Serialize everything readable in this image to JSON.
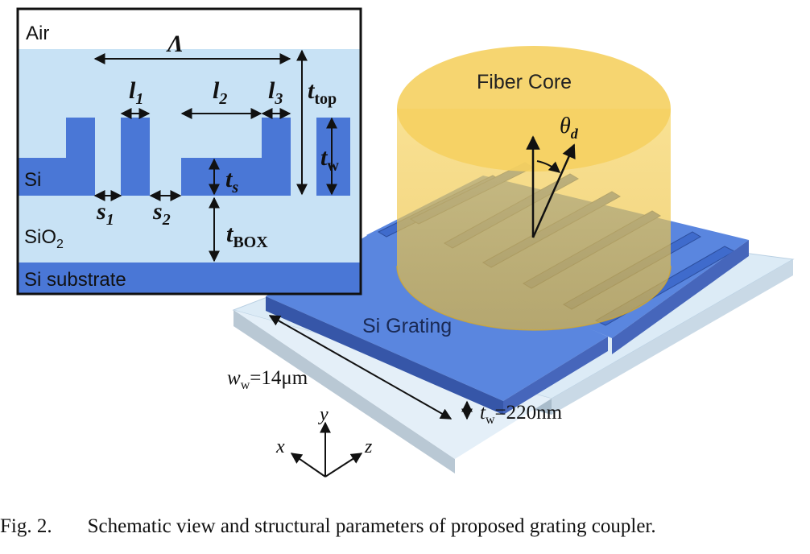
{
  "inset": {
    "air_label": "Air",
    "si_label": "Si",
    "sio2_label_main": "SiO",
    "sio2_label_sub": "2",
    "substrate_label": "Si substrate",
    "period_label": "Λ",
    "l1": {
      "main": "l",
      "sub": "1"
    },
    "l2": {
      "main": "l",
      "sub": "2"
    },
    "l3": {
      "main": "l",
      "sub": "3"
    },
    "s1": {
      "main": "s",
      "sub": "1"
    },
    "s2": {
      "main": "s",
      "sub": "2"
    },
    "ts": {
      "main": "t",
      "sub": "s"
    },
    "tw": {
      "main": "t",
      "sub": "w"
    },
    "ttop": {
      "main": "t",
      "sub": "top"
    },
    "tbox": {
      "main": "t",
      "sub": "BOX"
    }
  },
  "perspective": {
    "fiber_label": "Fiber Core",
    "theta": {
      "main": "θ",
      "sub": "d"
    },
    "grating_label": "Si Grating",
    "width": {
      "main": "w",
      "sub": "w",
      "value": "=14μm"
    },
    "thickness": {
      "main": "t",
      "sub": "w",
      "value": "=220nm"
    },
    "axis_x": "x",
    "axis_y": "y",
    "axis_z": "z"
  },
  "caption": {
    "number": "Fig. 2.",
    "text": "Schematic view and structural parameters of proposed grating coupler."
  },
  "colors": {
    "air": "#ffffff",
    "oxide": "#c8e2f5",
    "silicon": "#4a77d6",
    "fiber": "#f3c94a",
    "text": "#111111"
  }
}
